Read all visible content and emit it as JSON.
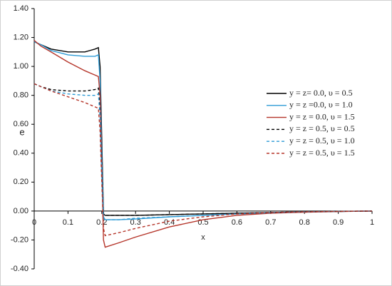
{
  "chart_data": {
    "type": "line",
    "x_label": "x",
    "y_label": "e",
    "x": [
      0,
      0.01,
      0.02,
      0.05,
      0.1,
      0.15,
      0.18,
      0.19,
      0.195,
      0.2,
      0.205,
      0.21,
      0.25,
      0.3,
      0.4,
      0.5,
      0.6,
      0.7,
      0.8,
      1.0
    ],
    "series": [
      {
        "name": "y = z= 0.0,  υ = 0.5",
        "color": "#000000",
        "dashed": false,
        "values": [
          1.17,
          1.16,
          1.15,
          1.12,
          1.1,
          1.1,
          1.12,
          1.13,
          1.0,
          0.5,
          -0.02,
          -0.03,
          -0.03,
          -0.03,
          -0.025,
          -0.02,
          -0.015,
          -0.01,
          -0.005,
          0.0
        ]
      },
      {
        "name": "y = z =0.0,  υ = 1.0",
        "color": "#2e9bd6",
        "dashed": false,
        "values": [
          1.17,
          1.16,
          1.15,
          1.11,
          1.08,
          1.07,
          1.07,
          1.08,
          0.9,
          0.4,
          -0.05,
          -0.06,
          -0.06,
          -0.055,
          -0.04,
          -0.03,
          -0.02,
          -0.012,
          -0.006,
          0.0
        ]
      },
      {
        "name": "y = z = 0.0,  υ = 1.5",
        "color": "#b5352a",
        "dashed": false,
        "values": [
          1.18,
          1.16,
          1.14,
          1.1,
          1.03,
          0.97,
          0.94,
          0.93,
          0.8,
          0.3,
          -0.2,
          -0.25,
          -0.22,
          -0.18,
          -0.11,
          -0.06,
          -0.03,
          -0.015,
          -0.008,
          0.0
        ]
      },
      {
        "name": "y = z = 0.5,  υ = 0.5",
        "color": "#000000",
        "dashed": true,
        "values": [
          0.88,
          0.87,
          0.86,
          0.84,
          0.83,
          0.83,
          0.84,
          0.85,
          0.7,
          0.3,
          -0.02,
          -0.03,
          -0.03,
          -0.03,
          -0.025,
          -0.02,
          -0.015,
          -0.01,
          -0.005,
          0.0
        ]
      },
      {
        "name": "y = z = 0.5,  υ = 1.0",
        "color": "#2e9bd6",
        "dashed": true,
        "values": [
          0.88,
          0.87,
          0.86,
          0.83,
          0.81,
          0.8,
          0.8,
          0.81,
          0.65,
          0.25,
          -0.04,
          -0.06,
          -0.06,
          -0.05,
          -0.04,
          -0.03,
          -0.02,
          -0.012,
          -0.006,
          0.0
        ]
      },
      {
        "name": "y = z = 0.5,  υ = 1.5",
        "color": "#b5352a",
        "dashed": true,
        "values": [
          0.88,
          0.87,
          0.86,
          0.83,
          0.79,
          0.75,
          0.72,
          0.71,
          0.55,
          0.2,
          -0.12,
          -0.17,
          -0.15,
          -0.12,
          -0.07,
          -0.04,
          -0.02,
          -0.01,
          -0.005,
          0.0
        ]
      }
    ],
    "xlim": [
      0,
      1
    ],
    "xticks": [
      0,
      0.1,
      0.2,
      0.3,
      0.4,
      0.5,
      0.6,
      0.7,
      0.8,
      0.9,
      1
    ],
    "ylim": [
      -0.4,
      1.4
    ],
    "yticks": [
      {
        "value": -0.4,
        "label": "-0.40"
      },
      {
        "value": -0.2,
        "label": "-0.20"
      },
      {
        "value": 0,
        "label": "0.00"
      },
      {
        "value": 0.2,
        "label": "0.20"
      },
      {
        "value": 0.4,
        "label": "0.40"
      },
      {
        "value": 0.6,
        "label": "0.60"
      },
      {
        "value": 0.8,
        "label": "0.80"
      },
      {
        "value": 1.0,
        "label": "1.00"
      },
      {
        "value": 1.2,
        "label": "1.20"
      },
      {
        "value": 1.4,
        "label": "1.40"
      }
    ],
    "grid": false,
    "legend": "right"
  }
}
